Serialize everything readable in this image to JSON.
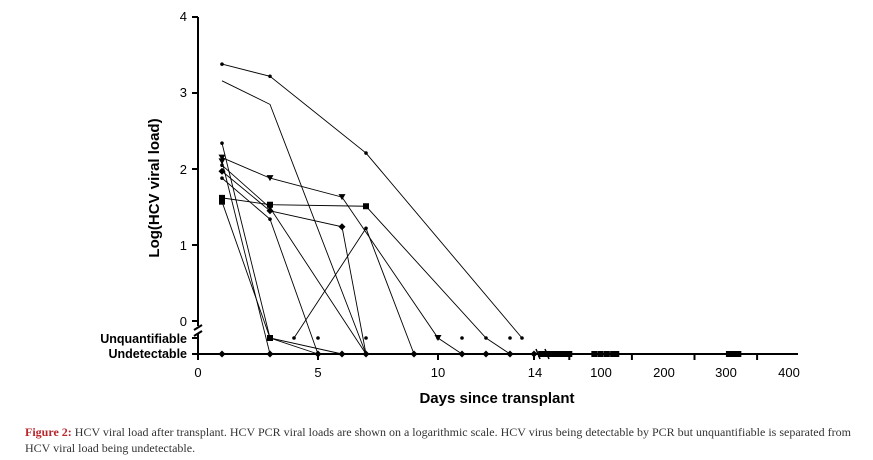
{
  "chart_data": {
    "type": "line",
    "title": "",
    "xlabel": "Days since transplant",
    "ylabel": "Log(HCV viral load)",
    "y_scale": "log10",
    "ylim": [
      0,
      4
    ],
    "y_ticks": [
      "0",
      "1",
      "2",
      "3",
      "4"
    ],
    "y_categories": [
      "Unquantifiable",
      "Undetectable"
    ],
    "x_axis_segments": [
      {
        "range": [
          0,
          14
        ],
        "ticks": [
          "0",
          "5",
          "10",
          "14"
        ]
      },
      {
        "range": [
          50,
          410
        ],
        "ticks": [
          "100",
          "200",
          "300",
          "400"
        ]
      }
    ],
    "grid": false,
    "legend": "none",
    "series": [
      {
        "marker": "dot",
        "points": [
          [
            1,
            3.38
          ],
          [
            3,
            3.22
          ],
          [
            7,
            2.21
          ],
          [
            13.5,
            "Unquantifiable"
          ]
        ]
      },
      {
        "marker": "none",
        "points": [
          [
            1,
            3.16
          ],
          [
            3,
            2.85
          ],
          [
            7,
            "Undetectable"
          ]
        ]
      },
      {
        "marker": "dot",
        "points": [
          [
            1,
            2.34
          ],
          [
            3,
            "Unquantifiable"
          ],
          [
            6,
            "Undetectable"
          ]
        ]
      },
      {
        "marker": "triangle-down",
        "points": [
          [
            1,
            2.15
          ],
          [
            3,
            1.88
          ],
          [
            6,
            1.63
          ],
          [
            10,
            "Unquantifiable"
          ],
          [
            11,
            "Undetectable"
          ]
        ]
      },
      {
        "marker": "triangle-down",
        "points": [
          [
            1,
            2.1
          ],
          [
            3,
            "Undetectable"
          ]
        ]
      },
      {
        "marker": "dot",
        "points": [
          [
            1,
            2.05
          ],
          [
            3,
            1.49
          ],
          [
            7,
            "Undetectable"
          ]
        ]
      },
      {
        "marker": "square",
        "points": [
          [
            1,
            1.62
          ],
          [
            3,
            1.53
          ],
          [
            7,
            1.51
          ],
          [
            12,
            "Unquantifiable"
          ],
          [
            13,
            "Undetectable"
          ]
        ]
      },
      {
        "marker": "diamond",
        "points": [
          [
            1,
            1.97
          ],
          [
            3,
            1.45
          ],
          [
            6,
            1.24
          ],
          [
            7,
            "Undetectable"
          ]
        ]
      },
      {
        "marker": "dot",
        "points": [
          [
            1,
            1.88
          ],
          [
            3,
            1.34
          ],
          [
            5,
            "Undetectable"
          ]
        ]
      },
      {
        "marker": "square",
        "points": [
          [
            1,
            1.57
          ],
          [
            3,
            "Unquantifiable"
          ],
          [
            5,
            "Undetectable"
          ]
        ]
      },
      {
        "marker": "dot",
        "points": [
          [
            4,
            "Unquantifiable"
          ],
          [
            7,
            1.22
          ],
          [
            9,
            "Undetectable"
          ]
        ]
      }
    ],
    "undetectable_markers_days": [
      1,
      3,
      5,
      6,
      7,
      9,
      11,
      12,
      13,
      14,
      55,
      60,
      65,
      70,
      75,
      80,
      85,
      90,
      95,
      100,
      140,
      150,
      160,
      170,
      175,
      355,
      360,
      365,
      370
    ],
    "unquantifiable_markers_days": [
      3,
      5,
      7,
      10,
      11,
      13
    ]
  },
  "caption": {
    "lead": "Figure 2:",
    "text": " HCV viral load after transplant. HCV PCR viral loads are shown on a logarithmic scale. HCV virus being detectable by PCR but unquantifiable is separated from HCV viral load being undetectable."
  }
}
